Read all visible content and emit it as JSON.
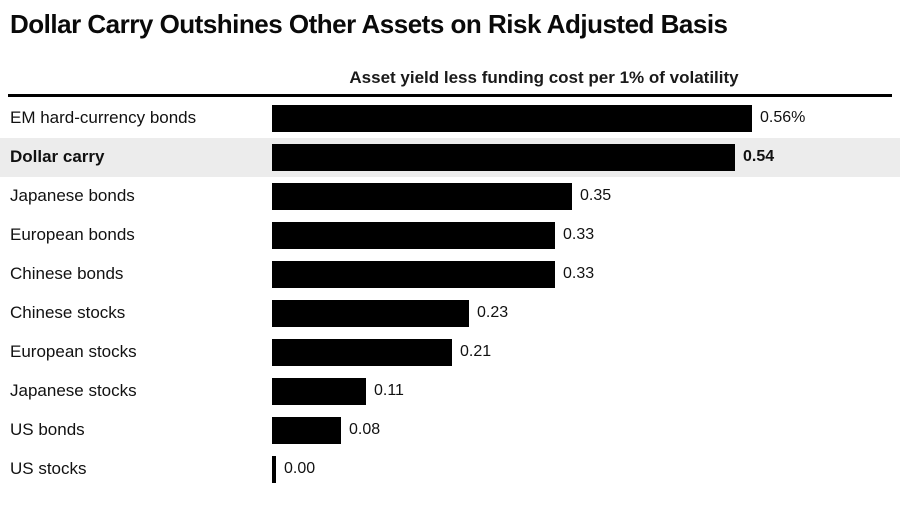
{
  "title": "Dollar Carry Outshines Other Assets on Risk Adjusted Basis",
  "subtitle": "Asset yield less funding cost per 1% of volatility",
  "chart_data": {
    "type": "bar",
    "orientation": "horizontal",
    "title": "Dollar Carry Outshines Other Assets on Risk Adjusted Basis",
    "subtitle": "Asset yield less funding cost per 1% of volatility",
    "categories": [
      "EM hard-currency bonds",
      "Dollar carry",
      "Japanese bonds",
      "European bonds",
      "Chinese bonds",
      "Chinese stocks",
      "European stocks",
      "Japanese stocks",
      "US bonds",
      "US stocks"
    ],
    "values": [
      0.56,
      0.54,
      0.35,
      0.33,
      0.33,
      0.23,
      0.21,
      0.11,
      0.08,
      0.0
    ],
    "value_labels": [
      "0.56%",
      "0.54",
      "0.35",
      "0.33",
      "0.33",
      "0.23",
      "0.21",
      "0.11",
      "0.08",
      "0.00"
    ],
    "highlight_index": 1,
    "xlim": [
      0,
      0.56
    ],
    "bar_color": "#000000",
    "highlight_bg": "#ececec",
    "grid": false,
    "legend": "none"
  }
}
